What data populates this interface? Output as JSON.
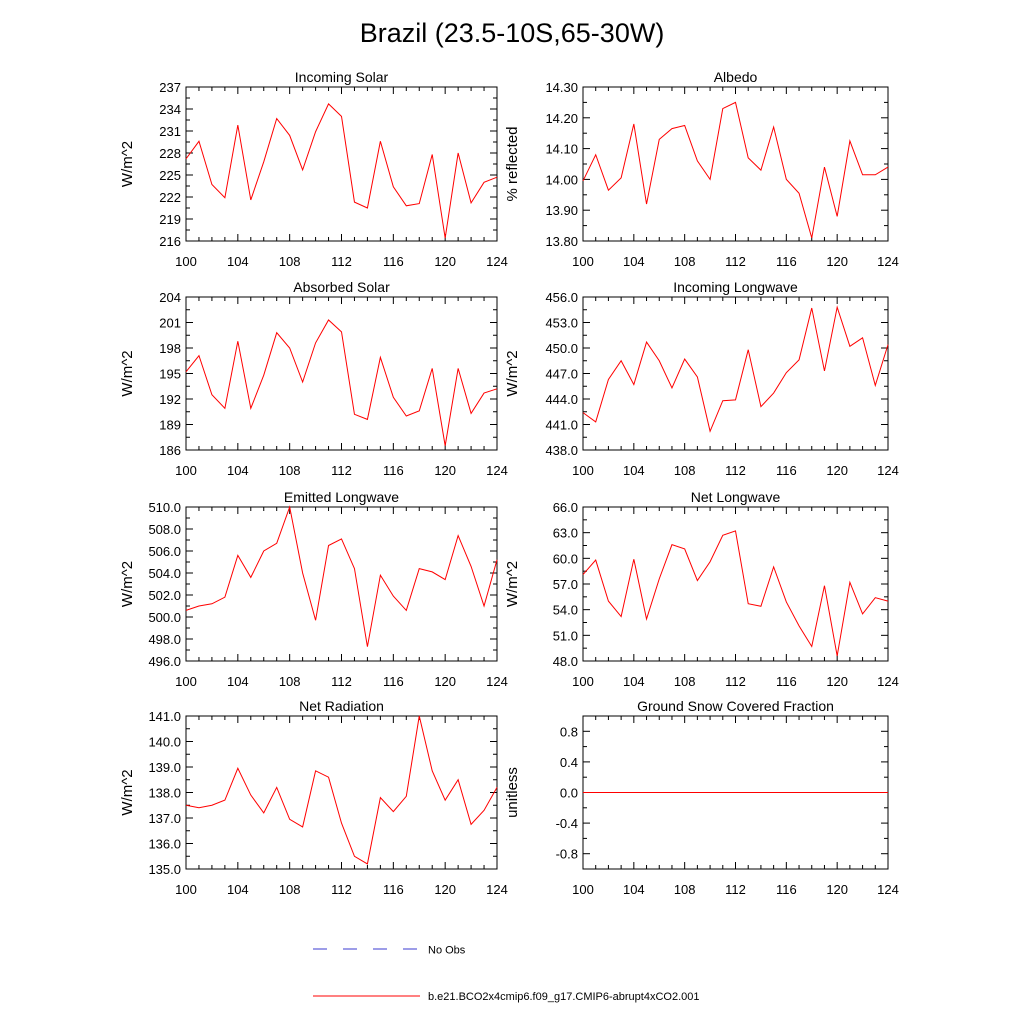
{
  "figure": {
    "title": "Brazil (23.5-10S,65-30W)",
    "legend": {
      "entries": [
        {
          "label": "No Obs",
          "style": "dashed",
          "color": "#3b3bd1"
        },
        {
          "label": "b.e21.BCO2x4cmip6.f09_g17.CMIP6-abrupt4xCO2.001",
          "style": "solid",
          "color": "#ff0000"
        }
      ]
    }
  },
  "chart_data": [
    {
      "type": "line",
      "title": "Incoming Solar",
      "ylabel": "W/m^2",
      "xlim": [
        100,
        124
      ],
      "ylim": [
        216,
        237
      ],
      "xticks": [
        100,
        104,
        108,
        112,
        116,
        120,
        124
      ],
      "yticks": [
        216,
        219,
        222,
        225,
        228,
        231,
        234,
        237
      ],
      "ytick_labels": [
        "216",
        "219",
        "222",
        "225",
        "228",
        "231",
        "234",
        "237"
      ],
      "series": [
        {
          "name": "b.e21.BCO2x4cmip6.f09_g17.CMIP6-abrupt4xCO2.001",
          "color": "#ff0000",
          "x": [
            100,
            101,
            102,
            103,
            104,
            105,
            106,
            107,
            108,
            109,
            110,
            111,
            112,
            113,
            114,
            115,
            116,
            117,
            118,
            119,
            120,
            121,
            122,
            123,
            124
          ],
          "y": [
            227.2,
            229.6,
            223.7,
            221.9,
            231.8,
            221.6,
            226.8,
            232.7,
            230.4,
            225.7,
            230.9,
            234.7,
            233.0,
            221.3,
            220.5,
            229.6,
            223.4,
            220.8,
            221.1,
            227.8,
            216.4,
            228.0,
            221.2,
            224.0,
            224.7
          ]
        }
      ]
    },
    {
      "type": "line",
      "title": "Albedo",
      "ylabel": "% reflected",
      "xlim": [
        100,
        124
      ],
      "ylim": [
        13.8,
        14.3
      ],
      "xticks": [
        100,
        104,
        108,
        112,
        116,
        120,
        124
      ],
      "yticks": [
        13.8,
        13.9,
        14.0,
        14.1,
        14.2,
        14.3
      ],
      "ytick_labels": [
        "13.80",
        "13.90",
        "14.00",
        "14.10",
        "14.20",
        "14.30"
      ],
      "series": [
        {
          "name": "b.e21.BCO2x4cmip6.f09_g17.CMIP6-abrupt4xCO2.001",
          "color": "#ff0000",
          "x": [
            100,
            101,
            102,
            103,
            104,
            105,
            106,
            107,
            108,
            109,
            110,
            111,
            112,
            113,
            114,
            115,
            116,
            117,
            118,
            119,
            120,
            121,
            122,
            123,
            124
          ],
          "y": [
            13.995,
            14.08,
            13.965,
            14.005,
            14.18,
            13.92,
            14.13,
            14.165,
            14.175,
            14.06,
            14.0,
            14.23,
            14.25,
            14.07,
            14.03,
            14.17,
            14.0,
            13.955,
            13.81,
            14.04,
            13.88,
            14.125,
            14.015,
            14.015,
            14.04
          ]
        }
      ]
    },
    {
      "type": "line",
      "title": "Absorbed Solar",
      "ylabel": "W/m^2",
      "xlim": [
        100,
        124
      ],
      "ylim": [
        186,
        204
      ],
      "xticks": [
        100,
        104,
        108,
        112,
        116,
        120,
        124
      ],
      "yticks": [
        186,
        189,
        192,
        195,
        198,
        201,
        204
      ],
      "ytick_labels": [
        "186",
        "189",
        "192",
        "195",
        "198",
        "201",
        "204"
      ],
      "series": [
        {
          "name": "b.e21.BCO2x4cmip6.f09_g17.CMIP6-abrupt4xCO2.001",
          "color": "#ff0000",
          "x": [
            100,
            101,
            102,
            103,
            104,
            105,
            106,
            107,
            108,
            109,
            110,
            111,
            112,
            113,
            114,
            115,
            116,
            117,
            118,
            119,
            120,
            121,
            122,
            123,
            124
          ],
          "y": [
            195.2,
            197.1,
            192.5,
            190.9,
            198.8,
            190.9,
            194.8,
            199.8,
            198.0,
            194.0,
            198.6,
            201.3,
            199.9,
            190.2,
            189.6,
            196.9,
            192.2,
            190.0,
            190.6,
            195.6,
            186.5,
            195.6,
            190.3,
            192.7,
            193.2
          ]
        }
      ]
    },
    {
      "type": "line",
      "title": "Incoming Longwave",
      "ylabel": "W/m^2",
      "xlim": [
        100,
        124
      ],
      "ylim": [
        438,
        456
      ],
      "xticks": [
        100,
        104,
        108,
        112,
        116,
        120,
        124
      ],
      "yticks": [
        438,
        441,
        444,
        447,
        450,
        453,
        456
      ],
      "ytick_labels": [
        "438.0",
        "441.0",
        "444.0",
        "447.0",
        "450.0",
        "453.0",
        "456.0"
      ],
      "series": [
        {
          "name": "b.e21.BCO2x4cmip6.f09_g17.CMIP6-abrupt4xCO2.001",
          "color": "#ff0000",
          "x": [
            100,
            101,
            102,
            103,
            104,
            105,
            106,
            107,
            108,
            109,
            110,
            111,
            112,
            113,
            114,
            115,
            116,
            117,
            118,
            119,
            120,
            121,
            122,
            123,
            124
          ],
          "y": [
            442.4,
            441.3,
            446.3,
            448.5,
            445.7,
            450.7,
            448.5,
            445.3,
            448.7,
            446.6,
            440.2,
            443.8,
            443.9,
            449.8,
            443.1,
            444.7,
            447.1,
            448.6,
            454.7,
            447.3,
            454.8,
            450.2,
            451.2,
            445.6,
            450.4
          ]
        }
      ]
    },
    {
      "type": "line",
      "title": "Emitted Longwave",
      "ylabel": "W/m^2",
      "xlim": [
        100,
        124
      ],
      "ylim": [
        496,
        510
      ],
      "xticks": [
        100,
        104,
        108,
        112,
        116,
        120,
        124
      ],
      "yticks": [
        496,
        498,
        500,
        502,
        504,
        506,
        508,
        510
      ],
      "ytick_labels": [
        "496.0",
        "498.0",
        "500.0",
        "502.0",
        "504.0",
        "506.0",
        "508.0",
        "510.0"
      ],
      "series": [
        {
          "name": "b.e21.BCO2x4cmip6.f09_g17.CMIP6-abrupt4xCO2.001",
          "color": "#ff0000",
          "x": [
            100,
            101,
            102,
            103,
            104,
            105,
            106,
            107,
            108,
            109,
            110,
            111,
            112,
            113,
            114,
            115,
            116,
            117,
            118,
            119,
            120,
            121,
            122,
            123,
            124
          ],
          "y": [
            500.6,
            501.0,
            501.2,
            501.8,
            505.6,
            503.6,
            506.0,
            506.7,
            510.0,
            504.0,
            499.7,
            506.5,
            507.1,
            504.4,
            497.3,
            503.8,
            501.9,
            500.6,
            504.4,
            504.1,
            503.4,
            507.4,
            504.6,
            501.0,
            505.2
          ]
        }
      ]
    },
    {
      "type": "line",
      "title": "Net Longwave",
      "ylabel": "W/m^2",
      "xlim": [
        100,
        124
      ],
      "ylim": [
        48,
        66
      ],
      "xticks": [
        100,
        104,
        108,
        112,
        116,
        120,
        124
      ],
      "yticks": [
        48,
        51,
        54,
        57,
        60,
        63,
        66
      ],
      "ytick_labels": [
        "48.0",
        "51.0",
        "54.0",
        "57.0",
        "60.0",
        "63.0",
        "66.0"
      ],
      "series": [
        {
          "name": "b.e21.BCO2x4cmip6.f09_g17.CMIP6-abrupt4xCO2.001",
          "color": "#ff0000",
          "x": [
            100,
            101,
            102,
            103,
            104,
            105,
            106,
            107,
            108,
            109,
            110,
            111,
            112,
            113,
            114,
            115,
            116,
            117,
            118,
            119,
            120,
            121,
            122,
            123,
            124
          ],
          "y": [
            58.1,
            59.8,
            55.0,
            53.2,
            59.9,
            52.9,
            57.6,
            61.6,
            61.1,
            57.4,
            59.6,
            62.7,
            63.2,
            54.7,
            54.4,
            59.0,
            54.9,
            52.1,
            49.7,
            56.8,
            48.6,
            57.2,
            53.5,
            55.4,
            55.0
          ]
        }
      ]
    },
    {
      "type": "line",
      "title": "Net Radiation",
      "ylabel": "W/m^2",
      "xlim": [
        100,
        124
      ],
      "ylim": [
        135,
        141
      ],
      "xticks": [
        100,
        104,
        108,
        112,
        116,
        120,
        124
      ],
      "yticks": [
        135,
        136,
        137,
        138,
        139,
        140,
        141
      ],
      "ytick_labels": [
        "135.0",
        "136.0",
        "137.0",
        "138.0",
        "139.0",
        "140.0",
        "141.0"
      ],
      "series": [
        {
          "name": "b.e21.BCO2x4cmip6.f09_g17.CMIP6-abrupt4xCO2.001",
          "color": "#ff0000",
          "x": [
            100,
            101,
            102,
            103,
            104,
            105,
            106,
            107,
            108,
            109,
            110,
            111,
            112,
            113,
            114,
            115,
            116,
            117,
            118,
            119,
            120,
            121,
            122,
            123,
            124
          ],
          "y": [
            137.5,
            137.4,
            137.5,
            137.7,
            138.95,
            137.9,
            137.2,
            138.2,
            136.95,
            136.65,
            138.85,
            138.6,
            136.8,
            135.5,
            135.2,
            137.8,
            137.25,
            137.85,
            141.0,
            138.85,
            137.7,
            138.5,
            136.75,
            137.3,
            138.2
          ]
        }
      ]
    },
    {
      "type": "line",
      "title": "Ground Snow Covered Fraction",
      "ylabel": "unitless",
      "xlim": [
        100,
        124
      ],
      "ylim": [
        -1.0,
        1.0
      ],
      "xticks": [
        100,
        104,
        108,
        112,
        116,
        120,
        124
      ],
      "yticks": [
        -0.8,
        -0.4,
        0.0,
        0.4,
        0.8
      ],
      "ytick_labels": [
        "-0.8",
        "-0.4",
        "0.0",
        "0.4",
        "0.8"
      ],
      "series": [
        {
          "name": "b.e21.BCO2x4cmip6.f09_g17.CMIP6-abrupt4xCO2.001",
          "color": "#ff0000",
          "x": [
            100,
            124
          ],
          "y": [
            0.0,
            0.0
          ]
        }
      ]
    }
  ]
}
